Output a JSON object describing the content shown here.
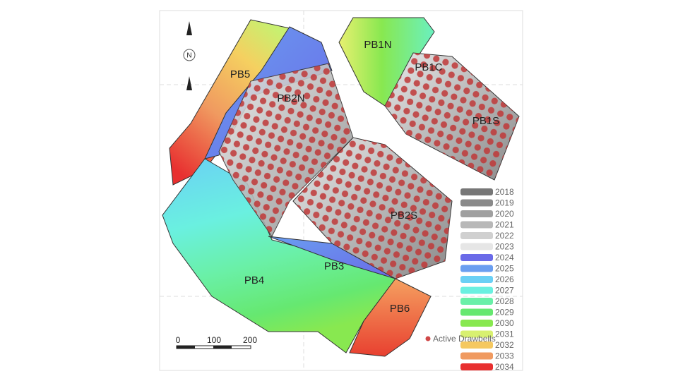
{
  "map": {
    "north_label": "N",
    "panels": [
      "PB5",
      "PB2N",
      "PB1N",
      "PB1C",
      "PB1S",
      "PB2S",
      "PB3",
      "PB4",
      "PB6"
    ],
    "legend": {
      "entries": [
        {
          "label": "2018",
          "color": "#777777"
        },
        {
          "label": "2019",
          "color": "#8a8a8a"
        },
        {
          "label": "2020",
          "color": "#a0a0a0"
        },
        {
          "label": "2021",
          "color": "#b8b8b8"
        },
        {
          "label": "2022",
          "color": "#d0d0d0"
        },
        {
          "label": "2023",
          "color": "#e6e6e6"
        },
        {
          "label": "2024",
          "color": "#6a6ae8"
        },
        {
          "label": "2025",
          "color": "#6a9ef0"
        },
        {
          "label": "2026",
          "color": "#6ad0f5"
        },
        {
          "label": "2027",
          "color": "#6af0e0"
        },
        {
          "label": "2028",
          "color": "#6af0a8"
        },
        {
          "label": "2029",
          "color": "#66e870"
        },
        {
          "label": "2030",
          "color": "#88e850"
        },
        {
          "label": "2031",
          "color": "#d8f070"
        },
        {
          "label": "2032",
          "color": "#f5c860"
        },
        {
          "label": "2033",
          "color": "#f09a60"
        },
        {
          "label": "2034",
          "color": "#e83030"
        }
      ],
      "drawbells_label": "Active Drawbells"
    },
    "scale_bar": {
      "ticks": [
        0,
        100,
        200
      ]
    }
  }
}
